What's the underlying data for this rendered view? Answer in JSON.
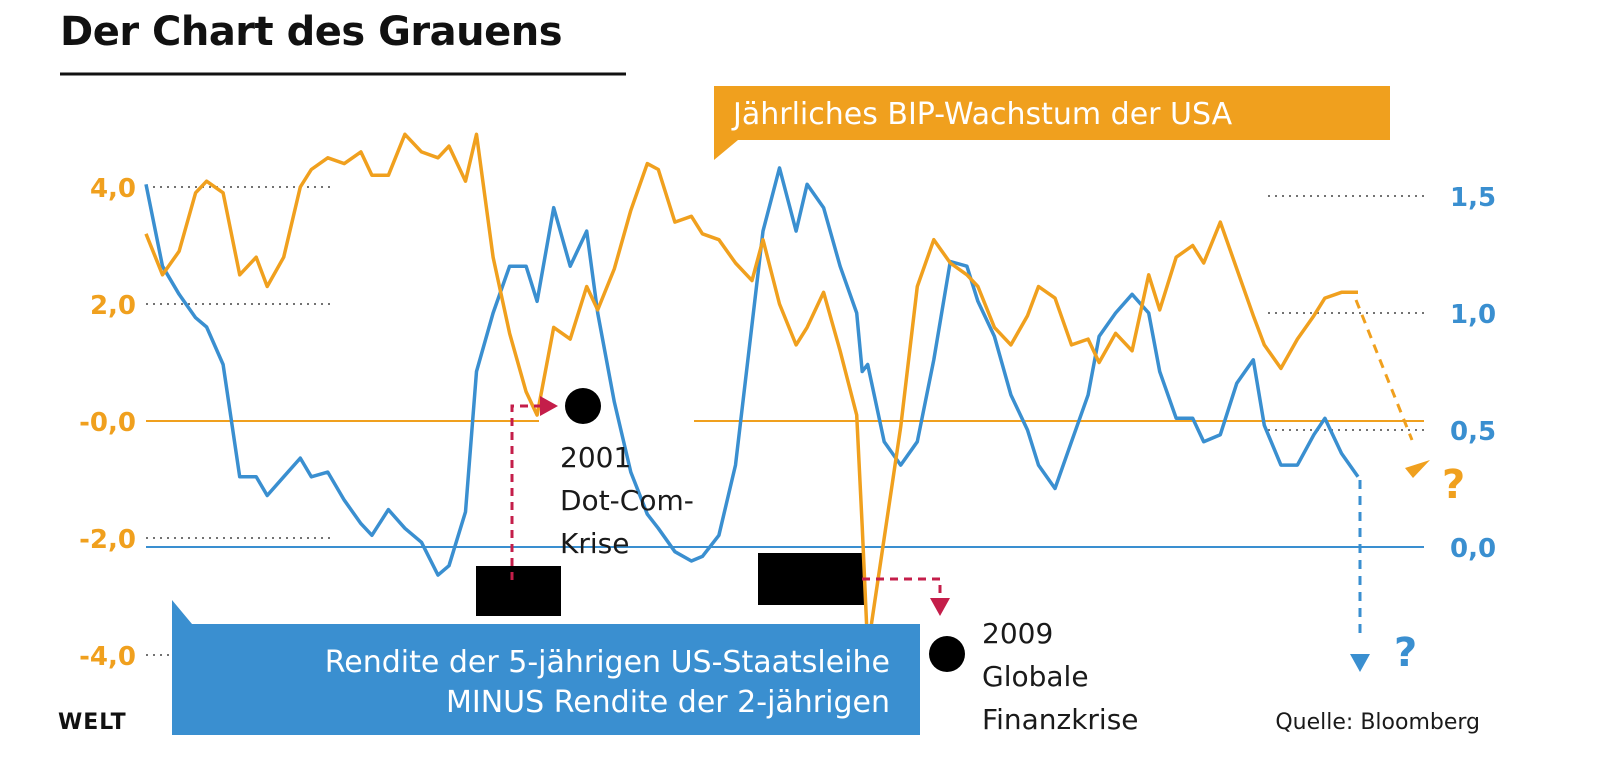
{
  "chart_data": {
    "type": "line",
    "title": "Der Chart des Grauens",
    "source": "Quelle: Bloomberg",
    "logo": "WELT",
    "colors": {
      "orange": "#f0a01e",
      "blue": "#3a8fd0",
      "red": "#c41e4a",
      "black": "#000000"
    },
    "left_axis": {
      "ticks": [
        "4,0",
        "2,0",
        "-0,0",
        "-2,0",
        "-4,0"
      ],
      "range": [
        -4.0,
        4.0
      ]
    },
    "right_axis": {
      "ticks": [
        "1,5",
        "1,0",
        "0,5",
        "0,0"
      ],
      "range": [
        -0.44,
        1.5
      ]
    },
    "series": [
      {
        "name": "Jährliches BIP-Wachstum der USA",
        "color": "#f0a01e",
        "axis": "left",
        "x": [
          1996.0,
          1996.3,
          1996.6,
          1996.9,
          1997.1,
          1997.4,
          1997.7,
          1998.0,
          1998.2,
          1998.5,
          1998.8,
          1999.0,
          1999.3,
          1999.6,
          1999.9,
          2000.1,
          2000.4,
          2000.7,
          2001.0,
          2001.3,
          2001.5,
          2001.8,
          2002.0,
          2002.3,
          2002.6,
          2002.9,
          2003.1,
          2003.4,
          2003.7,
          2004.0,
          2004.2,
          2004.5,
          2004.8,
          2005.1,
          2005.3,
          2005.6,
          2005.9,
          2006.1,
          2006.4,
          2006.7,
          2007.0,
          2007.2,
          2007.5,
          2007.8,
          2008.0,
          2008.3,
          2008.6,
          2008.9,
          2009.0,
          2009.1,
          2009.4,
          2009.7,
          2010.0,
          2010.3,
          2010.6,
          2010.9,
          2011.1,
          2011.4,
          2011.7,
          2012.0,
          2012.2,
          2012.5,
          2012.8,
          2013.1,
          2013.3,
          2013.6,
          2013.9,
          2014.2,
          2014.4,
          2014.7,
          2015.0,
          2015.2,
          2015.5,
          2015.8,
          2016.1,
          2016.3,
          2016.6,
          2016.9,
          2017.2,
          2017.4,
          2017.7,
          2018.0
        ],
        "values": [
          3.2,
          2.5,
          2.9,
          3.9,
          4.1,
          3.9,
          2.5,
          2.8,
          2.3,
          2.8,
          4.0,
          4.3,
          4.5,
          4.4,
          4.6,
          4.2,
          4.2,
          4.9,
          4.6,
          4.5,
          4.7,
          4.1,
          4.9,
          2.8,
          1.5,
          0.5,
          0.1,
          1.6,
          1.4,
          2.3,
          1.9,
          2.6,
          3.6,
          4.4,
          4.3,
          3.4,
          3.5,
          3.2,
          3.1,
          2.7,
          2.4,
          3.1,
          2.0,
          1.3,
          1.6,
          2.2,
          1.2,
          0.1,
          -1.8,
          -3.9,
          -2.0,
          -0.1,
          2.3,
          3.1,
          2.7,
          2.5,
          2.3,
          1.6,
          1.3,
          1.8,
          2.3,
          2.1,
          1.3,
          1.4,
          1.0,
          1.5,
          1.2,
          2.5,
          1.9,
          2.8,
          3.0,
          2.7,
          3.4,
          2.6,
          1.8,
          1.3,
          0.9,
          1.4,
          1.8,
          2.1,
          2.2,
          2.2
        ]
      },
      {
        "name": "Rendite der 5-jährigen US-Staatsleihe MINUS Rendite der 2-jährigen",
        "color": "#3a8fd0",
        "axis": "right",
        "x": [
          1996.0,
          1996.3,
          1996.6,
          1996.9,
          1997.1,
          1997.4,
          1997.7,
          1998.0,
          1998.2,
          1998.5,
          1998.8,
          1999.0,
          1999.3,
          1999.6,
          1999.9,
          2000.1,
          2000.4,
          2000.7,
          2001.0,
          2001.3,
          2001.5,
          2001.8,
          2002.0,
          2002.3,
          2002.6,
          2002.9,
          2003.1,
          2003.4,
          2003.7,
          2004.0,
          2004.2,
          2004.5,
          2004.8,
          2005.1,
          2005.3,
          2005.6,
          2005.9,
          2006.1,
          2006.4,
          2006.7,
          2007.0,
          2007.2,
          2007.5,
          2007.8,
          2008.0,
          2008.3,
          2008.6,
          2008.9,
          2009.0,
          2009.1,
          2009.4,
          2009.7,
          2010.0,
          2010.3,
          2010.6,
          2010.9,
          2011.1,
          2011.4,
          2011.7,
          2012.0,
          2012.2,
          2012.5,
          2012.8,
          2013.1,
          2013.3,
          2013.6,
          2013.9,
          2014.2,
          2014.4,
          2014.7,
          2015.0,
          2015.2,
          2015.5,
          2015.8,
          2016.1,
          2016.3,
          2016.6,
          2016.9,
          2017.2,
          2017.4,
          2017.7,
          2018.0
        ],
        "values": [
          1.55,
          1.2,
          1.08,
          0.98,
          0.94,
          0.78,
          0.3,
          0.3,
          0.22,
          0.3,
          0.38,
          0.3,
          0.32,
          0.2,
          0.1,
          0.05,
          0.16,
          0.08,
          0.02,
          -0.12,
          -0.08,
          0.15,
          0.75,
          1.0,
          1.2,
          1.2,
          1.05,
          1.45,
          1.2,
          1.35,
          1.0,
          0.62,
          0.32,
          0.14,
          0.08,
          -0.02,
          -0.06,
          -0.04,
          0.05,
          0.35,
          0.95,
          1.35,
          1.62,
          1.35,
          1.55,
          1.45,
          1.2,
          1.0,
          0.75,
          0.78,
          0.45,
          0.35,
          0.45,
          0.8,
          1.22,
          1.2,
          1.05,
          0.9,
          0.65,
          0.5,
          0.35,
          0.25,
          0.45,
          0.65,
          0.9,
          1.0,
          1.08,
          1.0,
          0.75,
          0.55,
          0.55,
          0.45,
          0.48,
          0.7,
          0.8,
          0.52,
          0.35,
          0.35,
          0.48,
          0.55,
          0.4,
          0.3
        ]
      }
    ],
    "labels": {
      "gdp_box": "Jährliches BIP-Wachstum der USA",
      "yield_box_line1": "Rendite der 5-jährigen US-Staatsleihe",
      "yield_box_line2": "MINUS Rendite der 2-jährigen"
    },
    "annotations": [
      {
        "lines": [
          "2001",
          "Dot-Com-",
          "Krise"
        ]
      },
      {
        "lines": [
          "2009",
          "Globale",
          "Finanzkrise"
        ]
      }
    ],
    "question_marks": [
      "?",
      "?"
    ]
  }
}
